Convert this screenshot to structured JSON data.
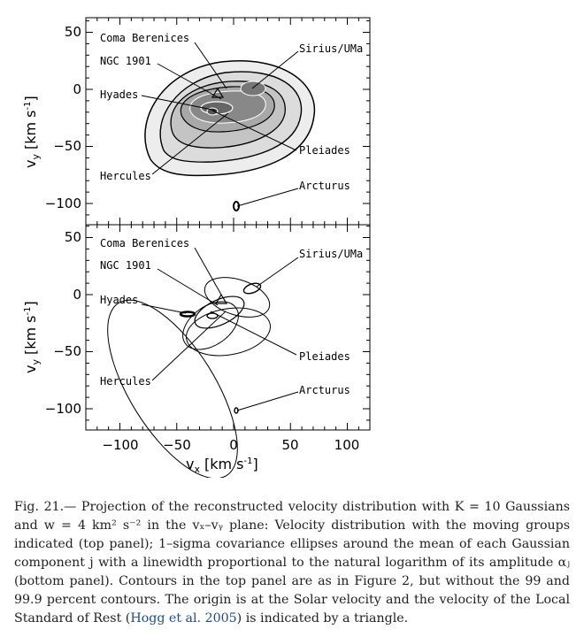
{
  "figure": {
    "top_panel": {
      "y_ticks": [
        "50",
        "0",
        "−50",
        "−100"
      ],
      "labels": {
        "coma": "Coma Berenices",
        "ngc": "NGC 1901",
        "hyades": "Hyades",
        "hercules": "Hercules",
        "sirius": "Sirius/UMa",
        "pleiades": "Pleiades",
        "arcturus": "Arcturus"
      }
    },
    "bottom_panel": {
      "y_ticks": [
        "50",
        "0",
        "−50",
        "−100"
      ],
      "labels": {
        "coma": "Coma Berenices",
        "ngc": "NGC 1901",
        "hyades": "Hyades",
        "hercules": "Hercules",
        "sirius": "Sirius/UMa",
        "pleiades": "Pleiades",
        "arcturus": "Arcturus"
      }
    },
    "x_ticks": [
      "−100",
      "−50",
      "0",
      "50",
      "100"
    ],
    "y_axis_title": "v",
    "y_axis_sub": "y",
    "y_axis_unit": "[km s",
    "y_axis_exp": "-1",
    "y_axis_close": "]",
    "x_axis_title": "v",
    "x_axis_sub": "x",
    "x_axis_unit": "[km s",
    "x_axis_exp": "-1",
    "x_axis_close": "]"
  },
  "caption": {
    "l1": "Fig. 21.— Projection of the reconstructed velocity distribution with K = 10 Gaussians and",
    "l2": "w = 4 km² s⁻² in the vₓ–vᵧ plane: Velocity distribution with the moving groups indicated",
    "l3": "(top panel); 1–sigma covariance ellipses around the mean of each Gaussian component j",
    "l4": "with a linewidth proportional to the natural logarithm of its amplitude αⱼ (bottom panel).",
    "l5": "Contours in the top panel are as in Figure 2, but without the 99 and 99.9 percent contours.",
    "l6a": "The origin is at the Solar velocity and the velocity of the Local Standard of Rest (",
    "l6cite": "Hogg et al.",
    "l7cite": "2005",
    "l7b": ") is indicated by a triangle."
  }
}
